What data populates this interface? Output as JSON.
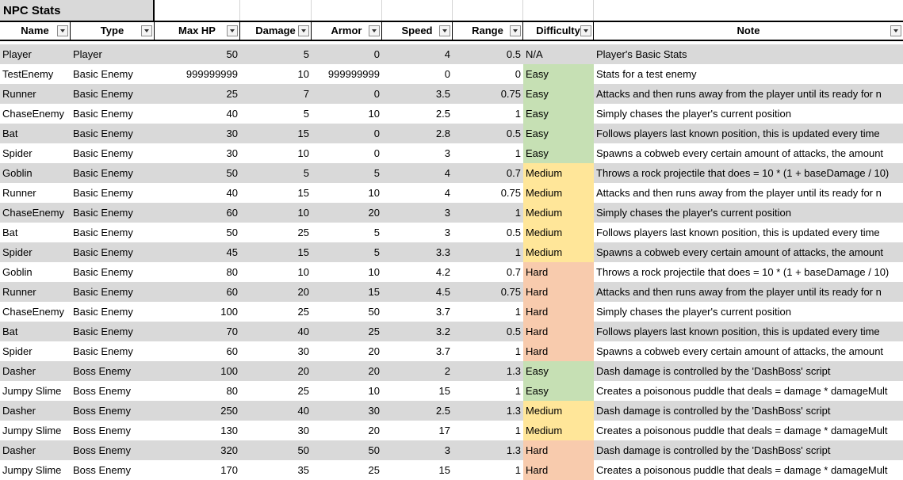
{
  "sheet": {
    "title": "NPC Stats",
    "headers": [
      "Name",
      "Type",
      "Max HP",
      "Damage",
      "Armor",
      "Speed",
      "Range",
      "Difficulty",
      "Note"
    ],
    "rows": [
      [
        "Player",
        "Player",
        "50",
        "5",
        "0",
        "4",
        "0.5",
        "N/A",
        "Player's Basic Stats"
      ],
      [
        "TestEnemy",
        "Basic Enemy",
        "999999999",
        "10",
        "999999999",
        "0",
        "0",
        "Easy",
        "Stats for a test enemy"
      ],
      [
        "Runner",
        "Basic Enemy",
        "25",
        "7",
        "0",
        "3.5",
        "0.75",
        "Easy",
        "Attacks and then runs away from the player until its ready for n"
      ],
      [
        "ChaseEnemy",
        "Basic Enemy",
        "40",
        "5",
        "10",
        "2.5",
        "1",
        "Easy",
        "Simply chases the player's current position"
      ],
      [
        "Bat",
        "Basic Enemy",
        "30",
        "15",
        "0",
        "2.8",
        "0.5",
        "Easy",
        "Follows players last known position, this is updated every time"
      ],
      [
        "Spider",
        "Basic Enemy",
        "30",
        "10",
        "0",
        "3",
        "1",
        "Easy",
        "Spawns a cobweb every certain amount of attacks, the amount"
      ],
      [
        "Goblin",
        "Basic Enemy",
        "50",
        "5",
        "5",
        "4",
        "0.7",
        "Medium",
        "Throws a rock projectile that does = 10 * (1 + baseDamage / 10)"
      ],
      [
        "Runner",
        "Basic Enemy",
        "40",
        "15",
        "10",
        "4",
        "0.75",
        "Medium",
        "Attacks and then runs away from the player until its ready for n"
      ],
      [
        "ChaseEnemy",
        "Basic Enemy",
        "60",
        "10",
        "20",
        "3",
        "1",
        "Medium",
        "Simply chases the player's current position"
      ],
      [
        "Bat",
        "Basic Enemy",
        "50",
        "25",
        "5",
        "3",
        "0.5",
        "Medium",
        "Follows players last known position, this is updated every time"
      ],
      [
        "Spider",
        "Basic Enemy",
        "45",
        "15",
        "5",
        "3.3",
        "1",
        "Medium",
        "Spawns a cobweb every certain amount of attacks, the amount"
      ],
      [
        "Goblin",
        "Basic Enemy",
        "80",
        "10",
        "10",
        "4.2",
        "0.7",
        "Hard",
        "Throws a rock projectile that does = 10 * (1 + baseDamage / 10)"
      ],
      [
        "Runner",
        "Basic Enemy",
        "60",
        "20",
        "15",
        "4.5",
        "0.75",
        "Hard",
        "Attacks and then runs away from the player until its ready for n"
      ],
      [
        "ChaseEnemy",
        "Basic Enemy",
        "100",
        "25",
        "50",
        "3.7",
        "1",
        "Hard",
        "Simply chases the player's current position"
      ],
      [
        "Bat",
        "Basic Enemy",
        "70",
        "40",
        "25",
        "3.2",
        "0.5",
        "Hard",
        "Follows players last known position, this is updated every time"
      ],
      [
        "Spider",
        "Basic Enemy",
        "60",
        "30",
        "20",
        "3.7",
        "1",
        "Hard",
        "Spawns a cobweb every certain amount of attacks, the amount"
      ],
      [
        "Dasher",
        "Boss Enemy",
        "100",
        "20",
        "20",
        "2",
        "1.3",
        "Easy",
        "Dash damage is controlled by the 'DashBoss' script"
      ],
      [
        "Jumpy Slime",
        "Boss Enemy",
        "80",
        "25",
        "10",
        "15",
        "1",
        "Easy",
        "Creates a poisonous puddle that deals = damage * damageMult"
      ],
      [
        "Dasher",
        "Boss Enemy",
        "250",
        "40",
        "30",
        "2.5",
        "1.3",
        "Medium",
        "Dash damage is controlled by the 'DashBoss' script"
      ],
      [
        "Jumpy Slime",
        "Boss Enemy",
        "130",
        "30",
        "20",
        "17",
        "1",
        "Medium",
        "Creates a poisonous puddle that deals = damage * damageMult"
      ],
      [
        "Dasher",
        "Boss Enemy",
        "320",
        "50",
        "50",
        "3",
        "1.3",
        "Hard",
        "Dash damage is controlled by the 'DashBoss' script"
      ],
      [
        "Jumpy Slime",
        "Boss Enemy",
        "170",
        "35",
        "25",
        "15",
        "1",
        "Hard",
        "Creates a poisonous puddle that deals = damage * damageMult"
      ]
    ]
  },
  "colors": {
    "gray_row": "#d9d9d9",
    "easy": "#c6e0b4",
    "medium": "#ffe699",
    "hard": "#f8cbad"
  },
  "icons": {
    "filter": "filter-dropdown-icon"
  }
}
